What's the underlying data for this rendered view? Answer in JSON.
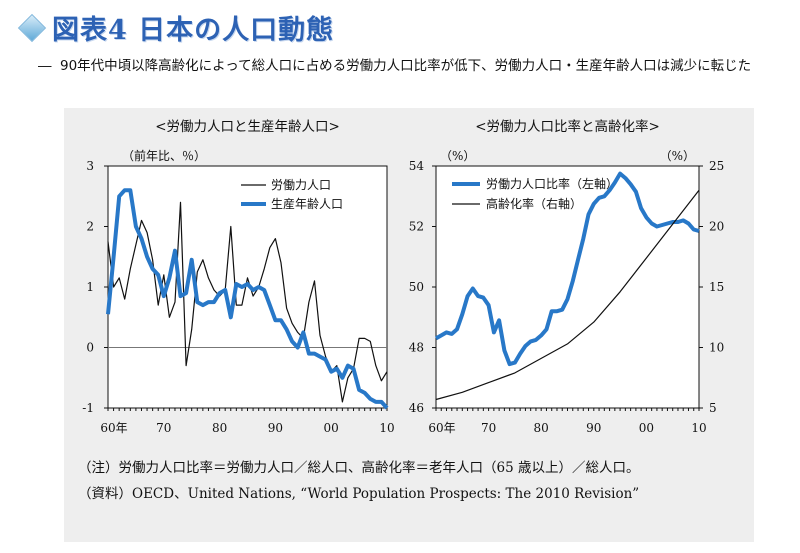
{
  "page": {
    "title": "図表4 日本の人口動態",
    "subtitle_dash": "―",
    "subtitle": "90年代中頃以降高齢化によって総人口に占める労働力人口比率が低下、労働力人口・生産年齢人口は減少に転じた",
    "note": "（注）労働力人口比率＝労働力人口／総人口、高齢化率＝老年人口（65 歳以上）／総人口。",
    "source": "（資料）OECD、United Nations, “World Population Prospects: The 2010 Revision”"
  },
  "colors": {
    "accent_blue": "#2878c8",
    "black": "#111111",
    "title_blue": "#2d62b4"
  },
  "chart_data": [
    {
      "type": "line",
      "title": "<労働力人口と生産年齢人口>",
      "ylabel": "（前年比、％）",
      "xlim": [
        1960,
        2010
      ],
      "ylim": [
        -1,
        3
      ],
      "xticks": [
        1960,
        1970,
        1980,
        1990,
        2000,
        2010
      ],
      "xtick_labels": [
        "60年",
        "70",
        "80",
        "90",
        "00",
        "10"
      ],
      "yticks": [
        -1,
        0,
        1,
        2,
        3
      ],
      "ytick_labels": [
        "-1",
        "0",
        "1",
        "2",
        "3"
      ],
      "zero_line": true,
      "legend_position": "top-right",
      "series": [
        {
          "name": "労働力人口",
          "color": "#111111",
          "x": [
            1960,
            1961,
            1962,
            1963,
            1964,
            1965,
            1966,
            1967,
            1968,
            1969,
            1970,
            1971,
            1972,
            1973,
            1974,
            1975,
            1976,
            1977,
            1978,
            1979,
            1980,
            1981,
            1982,
            1983,
            1984,
            1985,
            1986,
            1987,
            1988,
            1989,
            1990,
            1991,
            1992,
            1993,
            1994,
            1995,
            1996,
            1997,
            1998,
            1999,
            2000,
            2001,
            2002,
            2003,
            2004,
            2005,
            2006,
            2007,
            2008,
            2009,
            2010
          ],
          "values": [
            1.75,
            1.0,
            1.15,
            0.8,
            1.3,
            1.7,
            2.1,
            1.9,
            1.45,
            0.7,
            1.2,
            0.5,
            0.75,
            2.4,
            -0.3,
            0.3,
            1.25,
            1.45,
            1.15,
            0.95,
            0.85,
            0.95,
            2.0,
            0.7,
            0.7,
            1.15,
            0.85,
            1.0,
            1.3,
            1.65,
            1.8,
            1.4,
            0.65,
            0.4,
            0.25,
            0.15,
            0.75,
            1.1,
            0.2,
            -0.15,
            -0.4,
            -0.3,
            -0.9,
            -0.5,
            -0.35,
            0.15,
            0.15,
            0.1,
            -0.3,
            -0.55,
            -0.4
          ]
        },
        {
          "name": "生産年齢人口",
          "color": "#2878c8",
          "x": [
            1960,
            1961,
            1962,
            1963,
            1964,
            1965,
            1966,
            1967,
            1968,
            1969,
            1970,
            1971,
            1972,
            1973,
            1974,
            1975,
            1976,
            1977,
            1978,
            1979,
            1980,
            1981,
            1982,
            1983,
            1984,
            1985,
            1986,
            1987,
            1988,
            1989,
            1990,
            1991,
            1992,
            1993,
            1994,
            1995,
            1996,
            1997,
            1998,
            1999,
            2000,
            2001,
            2002,
            2003,
            2004,
            2005,
            2006,
            2007,
            2008,
            2009,
            2010
          ],
          "values": [
            0.55,
            1.5,
            2.5,
            2.6,
            2.6,
            2.0,
            1.8,
            1.5,
            1.3,
            1.2,
            0.85,
            1.15,
            1.6,
            0.85,
            0.9,
            1.45,
            0.75,
            0.7,
            0.75,
            0.75,
            0.9,
            0.95,
            0.5,
            1.05,
            1.0,
            1.05,
            0.95,
            1.0,
            0.95,
            0.7,
            0.45,
            0.45,
            0.3,
            0.1,
            0.0,
            0.25,
            -0.1,
            -0.1,
            -0.15,
            -0.2,
            -0.4,
            -0.35,
            -0.5,
            -0.3,
            -0.35,
            -0.7,
            -0.75,
            -0.85,
            -0.9,
            -0.9,
            -1.0
          ]
        }
      ]
    },
    {
      "type": "line",
      "title": "<労働力人口比率と高齢化率>",
      "ylabel_left": "（%）",
      "ylabel_right": "（%）",
      "xlim": [
        1960,
        2010
      ],
      "ylim_left": [
        46,
        54
      ],
      "ylim_right": [
        5,
        25
      ],
      "xticks": [
        1960,
        1970,
        1980,
        1990,
        2000,
        2010
      ],
      "xtick_labels": [
        "60年",
        "70",
        "80",
        "90",
        "00",
        "10"
      ],
      "yticks_left": [
        46,
        48,
        50,
        52,
        54
      ],
      "yticks_right": [
        5,
        10,
        15,
        20,
        25
      ],
      "legend_position": "top-left",
      "series": [
        {
          "name": "労働力人口比率（左軸）",
          "axis": "left",
          "color": "#2878c8",
          "x": [
            1960,
            1961,
            1962,
            1963,
            1964,
            1965,
            1966,
            1967,
            1968,
            1969,
            1970,
            1971,
            1972,
            1973,
            1974,
            1975,
            1976,
            1977,
            1978,
            1979,
            1980,
            1981,
            1982,
            1983,
            1984,
            1985,
            1986,
            1987,
            1988,
            1989,
            1990,
            1991,
            1992,
            1993,
            1994,
            1995,
            1996,
            1997,
            1998,
            1999,
            2000,
            2001,
            2002,
            2003,
            2004,
            2005,
            2006,
            2007,
            2008,
            2009,
            2010
          ],
          "values": [
            48.3,
            48.4,
            48.5,
            48.45,
            48.6,
            49.1,
            49.7,
            49.95,
            49.7,
            49.65,
            49.4,
            48.5,
            48.9,
            47.9,
            47.45,
            47.5,
            47.8,
            48.05,
            48.2,
            48.25,
            48.4,
            48.6,
            49.2,
            49.2,
            49.25,
            49.6,
            50.2,
            50.9,
            51.6,
            52.4,
            52.75,
            52.95,
            53.0,
            53.2,
            53.45,
            53.75,
            53.6,
            53.4,
            53.15,
            52.6,
            52.3,
            52.1,
            52.0,
            52.05,
            52.1,
            52.15,
            52.15,
            52.2,
            52.1,
            51.9,
            51.85
          ]
        },
        {
          "name": "高齢化率（右軸）",
          "axis": "right",
          "color": "#111111",
          "x": [
            1960,
            1965,
            1970,
            1975,
            1980,
            1985,
            1990,
            1995,
            2000,
            2005,
            2010
          ],
          "values": [
            5.7,
            6.3,
            7.1,
            7.9,
            9.1,
            10.3,
            12.1,
            14.6,
            17.4,
            20.2,
            23.0
          ]
        }
      ]
    }
  ]
}
